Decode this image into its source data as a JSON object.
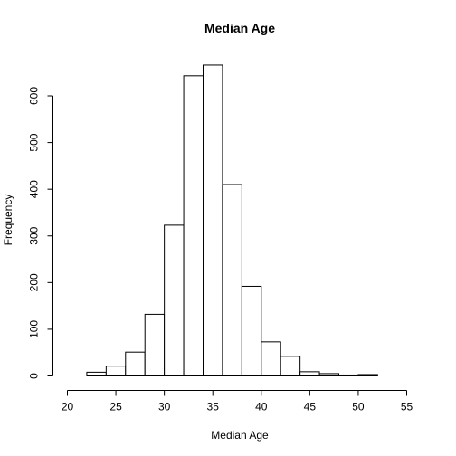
{
  "chart_data": {
    "type": "bar",
    "title": "Median Age",
    "xlabel": "Median Age",
    "ylabel": "Frequency",
    "xlim": [
      20,
      56
    ],
    "ylim": [
      0,
      650
    ],
    "x_ticks": [
      20,
      25,
      30,
      35,
      40,
      45,
      50,
      55
    ],
    "y_ticks": [
      0,
      100,
      200,
      300,
      400,
      500,
      600
    ],
    "bins": [
      {
        "from": 22,
        "to": 24,
        "count": 8
      },
      {
        "from": 24,
        "to": 26,
        "count": 21
      },
      {
        "from": 26,
        "to": 28,
        "count": 51
      },
      {
        "from": 28,
        "to": 30,
        "count": 132
      },
      {
        "from": 30,
        "to": 32,
        "count": 323
      },
      {
        "from": 32,
        "to": 34,
        "count": 643
      },
      {
        "from": 34,
        "to": 36,
        "count": 666
      },
      {
        "from": 36,
        "to": 38,
        "count": 410
      },
      {
        "from": 38,
        "to": 40,
        "count": 192
      },
      {
        "from": 40,
        "to": 42,
        "count": 73
      },
      {
        "from": 42,
        "to": 44,
        "count": 42
      },
      {
        "from": 44,
        "to": 46,
        "count": 9
      },
      {
        "from": 46,
        "to": 48,
        "count": 5
      },
      {
        "from": 48,
        "to": 50,
        "count": 2
      },
      {
        "from": 50,
        "to": 52,
        "count": 3
      },
      {
        "from": 52,
        "to": 54,
        "count": 0
      },
      {
        "from": 54,
        "to": 56,
        "count": 0
      }
    ],
    "grid": false,
    "colors": {
      "bar_fill": "#ffffff",
      "bar_stroke": "#000000"
    }
  }
}
